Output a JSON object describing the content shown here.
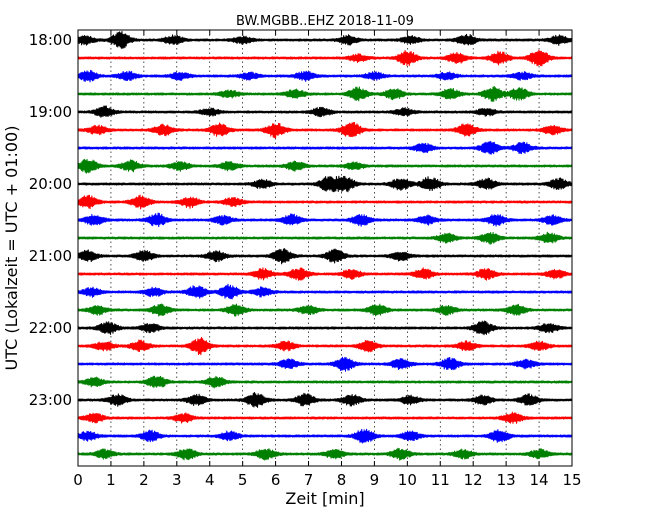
{
  "chart_data": {
    "type": "line",
    "title": "BW.MGBB..EHZ 2018-11-09",
    "xlabel": "Zeit  [min]",
    "ylabel": "UTC (Lokalzeit = UTC + 01:00)",
    "xlim": [
      0,
      15
    ],
    "x_ticks": [
      "0",
      "1",
      "2",
      "3",
      "4",
      "5",
      "6",
      "7",
      "8",
      "9",
      "10",
      "11",
      "12",
      "13",
      "14",
      "15"
    ],
    "y_ticks": [
      "18:00",
      "19:00",
      "20:00",
      "21:00",
      "22:00",
      "23:00"
    ],
    "grid": "vertical dotted",
    "trace_colors": [
      "#000000",
      "#ff0000",
      "#0000ff",
      "#008000"
    ],
    "rows": [
      {
        "start": "18:00",
        "color": "#000000",
        "bursts": [
          [
            0.2,
            0.5
          ],
          [
            1.3,
            0.9
          ],
          [
            2.9,
            0.5
          ],
          [
            5.0,
            0.4
          ],
          [
            8.2,
            0.5
          ],
          [
            10.1,
            0.4
          ],
          [
            11.8,
            0.6
          ],
          [
            14.6,
            0.5
          ]
        ]
      },
      {
        "start": "18:15",
        "color": "#ff0000",
        "bursts": [
          [
            8.5,
            0.4
          ],
          [
            10.0,
            0.8
          ],
          [
            11.5,
            0.6
          ],
          [
            12.8,
            0.7
          ],
          [
            14.0,
            0.9
          ]
        ]
      },
      {
        "start": "18:30",
        "color": "#0000ff",
        "bursts": [
          [
            0.3,
            0.6
          ],
          [
            1.5,
            0.5
          ],
          [
            3.1,
            0.4
          ],
          [
            5.2,
            0.4
          ],
          [
            6.9,
            0.5
          ],
          [
            9.0,
            0.4
          ],
          [
            11.2,
            0.4
          ],
          [
            13.5,
            0.4
          ]
        ]
      },
      {
        "start": "18:45",
        "color": "#008000",
        "bursts": [
          [
            4.6,
            0.4
          ],
          [
            6.6,
            0.5
          ],
          [
            8.5,
            0.7
          ],
          [
            9.6,
            0.6
          ],
          [
            11.3,
            0.6
          ],
          [
            12.6,
            0.8
          ],
          [
            13.4,
            0.7
          ]
        ]
      },
      {
        "start": "19:00",
        "color": "#000000",
        "bursts": [
          [
            0.8,
            0.6
          ],
          [
            4.0,
            0.4
          ],
          [
            7.4,
            0.5
          ],
          [
            9.9,
            0.4
          ],
          [
            12.4,
            0.4
          ]
        ]
      },
      {
        "start": "19:15",
        "color": "#ff0000",
        "bursts": [
          [
            0.6,
            0.5
          ],
          [
            2.6,
            0.6
          ],
          [
            4.3,
            0.7
          ],
          [
            6.0,
            0.8
          ],
          [
            8.3,
            0.9
          ],
          [
            11.8,
            0.7
          ],
          [
            14.4,
            0.5
          ]
        ]
      },
      {
        "start": "19:30",
        "color": "#0000ff",
        "bursts": [
          [
            10.5,
            0.5
          ],
          [
            12.5,
            0.7
          ],
          [
            13.5,
            0.6
          ]
        ]
      },
      {
        "start": "19:45",
        "color": "#008000",
        "bursts": [
          [
            0.3,
            0.8
          ],
          [
            1.6,
            0.6
          ],
          [
            3.1,
            0.5
          ],
          [
            4.6,
            0.5
          ],
          [
            6.6,
            0.5
          ],
          [
            8.4,
            0.4
          ]
        ]
      },
      {
        "start": "20:00",
        "color": "#000000",
        "bursts": [
          [
            5.6,
            0.5
          ],
          [
            7.6,
            0.8
          ],
          [
            8.1,
            0.9
          ],
          [
            9.8,
            0.7
          ],
          [
            10.7,
            0.8
          ],
          [
            12.4,
            0.6
          ],
          [
            14.6,
            0.6
          ]
        ]
      },
      {
        "start": "20:15",
        "color": "#ff0000",
        "bursts": [
          [
            0.3,
            0.7
          ],
          [
            1.9,
            0.7
          ],
          [
            3.4,
            0.6
          ],
          [
            4.7,
            0.5
          ]
        ]
      },
      {
        "start": "20:30",
        "color": "#0000ff",
        "bursts": [
          [
            0.5,
            0.6
          ],
          [
            2.4,
            0.7
          ],
          [
            4.4,
            0.5
          ],
          [
            6.5,
            0.6
          ],
          [
            8.6,
            0.6
          ],
          [
            10.6,
            0.5
          ],
          [
            12.7,
            0.6
          ],
          [
            14.4,
            0.5
          ]
        ]
      },
      {
        "start": "20:45",
        "color": "#008000",
        "bursts": [
          [
            11.2,
            0.5
          ],
          [
            12.5,
            0.6
          ],
          [
            14.3,
            0.6
          ]
        ]
      },
      {
        "start": "21:00",
        "color": "#000000",
        "bursts": [
          [
            0.3,
            0.6
          ],
          [
            2.0,
            0.6
          ],
          [
            4.2,
            0.6
          ],
          [
            6.2,
            0.8
          ],
          [
            7.8,
            0.7
          ],
          [
            9.8,
            0.5
          ]
        ]
      },
      {
        "start": "21:15",
        "color": "#ff0000",
        "bursts": [
          [
            5.6,
            0.6
          ],
          [
            6.7,
            0.7
          ],
          [
            8.3,
            0.5
          ],
          [
            10.5,
            0.6
          ],
          [
            12.4,
            0.6
          ],
          [
            14.5,
            0.5
          ]
        ]
      },
      {
        "start": "21:30",
        "color": "#0000ff",
        "bursts": [
          [
            0.4,
            0.5
          ],
          [
            2.3,
            0.5
          ],
          [
            3.6,
            0.7
          ],
          [
            4.6,
            0.8
          ],
          [
            5.6,
            0.5
          ]
        ]
      },
      {
        "start": "21:45",
        "color": "#008000",
        "bursts": [
          [
            0.6,
            0.5
          ],
          [
            2.5,
            0.6
          ],
          [
            4.8,
            0.6
          ],
          [
            7.0,
            0.5
          ],
          [
            9.1,
            0.6
          ],
          [
            11.2,
            0.5
          ],
          [
            13.3,
            0.6
          ]
        ]
      },
      {
        "start": "22:00",
        "color": "#000000",
        "bursts": [
          [
            0.9,
            0.7
          ],
          [
            2.2,
            0.5
          ],
          [
            12.3,
            0.8
          ],
          [
            14.3,
            0.5
          ]
        ]
      },
      {
        "start": "22:15",
        "color": "#ff0000",
        "bursts": [
          [
            0.8,
            0.5
          ],
          [
            1.9,
            0.6
          ],
          [
            3.7,
            0.9
          ],
          [
            6.3,
            0.5
          ],
          [
            8.8,
            0.6
          ],
          [
            11.8,
            0.5
          ],
          [
            14.0,
            0.5
          ]
        ]
      },
      {
        "start": "22:30",
        "color": "#0000ff",
        "bursts": [
          [
            6.4,
            0.5
          ],
          [
            8.1,
            0.8
          ],
          [
            9.8,
            0.6
          ],
          [
            11.3,
            0.7
          ],
          [
            13.6,
            0.5
          ]
        ]
      },
      {
        "start": "22:45",
        "color": "#008000",
        "bursts": [
          [
            0.5,
            0.5
          ],
          [
            2.4,
            0.7
          ],
          [
            4.2,
            0.6
          ]
        ]
      },
      {
        "start": "23:00",
        "color": "#000000",
        "bursts": [
          [
            1.2,
            0.6
          ],
          [
            3.6,
            0.6
          ],
          [
            5.4,
            0.8
          ],
          [
            6.9,
            0.7
          ],
          [
            8.3,
            0.6
          ],
          [
            10.1,
            0.5
          ],
          [
            12.3,
            0.5
          ],
          [
            13.7,
            0.6
          ]
        ]
      },
      {
        "start": "23:15",
        "color": "#ff0000",
        "bursts": [
          [
            0.5,
            0.5
          ],
          [
            3.2,
            0.5
          ],
          [
            13.2,
            0.6
          ]
        ]
      },
      {
        "start": "23:30",
        "color": "#0000ff",
        "bursts": [
          [
            0.3,
            0.5
          ],
          [
            2.2,
            0.6
          ],
          [
            4.6,
            0.5
          ],
          [
            8.7,
            0.8
          ],
          [
            10.1,
            0.5
          ],
          [
            12.8,
            0.7
          ]
        ]
      },
      {
        "start": "23:45",
        "color": "#008000",
        "bursts": [
          [
            0.8,
            0.5
          ],
          [
            3.3,
            0.6
          ],
          [
            5.7,
            0.6
          ],
          [
            7.8,
            0.5
          ],
          [
            9.8,
            0.6
          ],
          [
            11.7,
            0.5
          ],
          [
            14.0,
            0.5
          ]
        ]
      }
    ]
  }
}
